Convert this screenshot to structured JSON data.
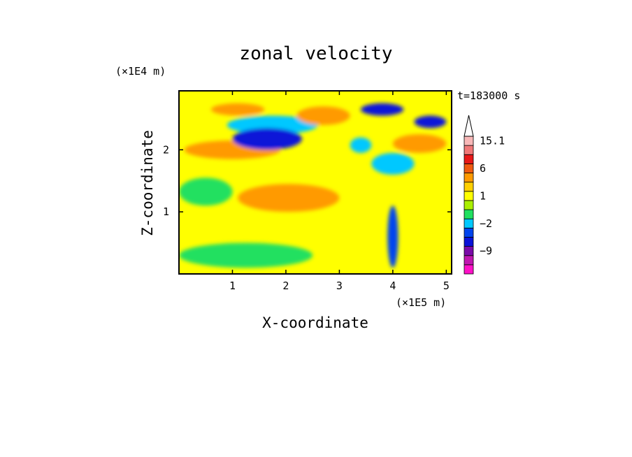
{
  "chart_data": {
    "type": "heatmap",
    "title": "zonal velocity",
    "xlabel": "X-coordinate",
    "ylabel": "Z-coordinate",
    "x_scale_label": "(×1E5 m)",
    "y_scale_label": "(×1E4 m)",
    "time_label": "t=183000 s",
    "xlim": [
      0,
      5.1
    ],
    "ylim": [
      0,
      2.95
    ],
    "x_ticks": [
      1,
      2,
      3,
      4,
      5
    ],
    "y_ticks": [
      1,
      2
    ],
    "colorbar": {
      "bands": [
        {
          "color": "#ff10c8"
        },
        {
          "color": "#c016b0"
        },
        {
          "color": "#7a0aa8"
        },
        {
          "color": "#0a12d8"
        },
        {
          "color": "#0044ee"
        },
        {
          "color": "#00c8ff"
        },
        {
          "color": "#20e060"
        },
        {
          "color": "#aaf000"
        },
        {
          "color": "#ffff00"
        },
        {
          "color": "#ffd000"
        },
        {
          "color": "#ff9a00"
        },
        {
          "color": "#f05a10"
        },
        {
          "color": "#e81818"
        },
        {
          "color": "#f07878"
        },
        {
          "color": "#f8b8b8"
        }
      ],
      "tick_labels": [
        {
          "text": "15.1",
          "band": 14
        },
        {
          "text": "6",
          "band": 11
        },
        {
          "text": "1",
          "band": 8
        },
        {
          "text": "−2",
          "band": 5
        },
        {
          "text": "−9",
          "band": 2
        }
      ]
    },
    "field": {
      "background": "#ffff00",
      "features": [
        {
          "x": [
            0.1,
            1.9
          ],
          "z": [
            1.85,
            2.15
          ],
          "color": "#ff9a00"
        },
        {
          "x": [
            1.1,
            3.0
          ],
          "z": [
            1.0,
            1.45
          ],
          "color": "#ff9a00"
        },
        {
          "x": [
            0.9,
            2.6
          ],
          "z": [
            2.25,
            2.55
          ],
          "color": "#00c8ff"
        },
        {
          "x": [
            1.0,
            2.3
          ],
          "z": [
            2.0,
            2.35
          ],
          "color": "#0a12d8"
        },
        {
          "x": [
            3.4,
            4.2
          ],
          "z": [
            2.55,
            2.75
          ],
          "color": "#0a12d8"
        },
        {
          "x": [
            4.4,
            5.0
          ],
          "z": [
            2.35,
            2.55
          ],
          "color": "#0a12d8"
        },
        {
          "x": [
            0.6,
            1.6
          ],
          "z": [
            2.55,
            2.75
          ],
          "color": "#ff9a00"
        },
        {
          "x": [
            2.2,
            3.2
          ],
          "z": [
            2.4,
            2.7
          ],
          "color": "#ff9a00"
        },
        {
          "x": [
            4.0,
            5.0
          ],
          "z": [
            1.95,
            2.25
          ],
          "color": "#ff9a00"
        },
        {
          "x": [
            0.0,
            1.0
          ],
          "z": [
            1.1,
            1.55
          ],
          "color": "#20e060"
        },
        {
          "x": [
            0.0,
            2.5
          ],
          "z": [
            0.1,
            0.5
          ],
          "color": "#20e060"
        },
        {
          "x": [
            3.9,
            4.1
          ],
          "z": [
            0.1,
            1.1
          ],
          "color": "#0044ee"
        },
        {
          "x": [
            3.2,
            3.6
          ],
          "z": [
            1.95,
            2.2
          ],
          "color": "#00c8ff"
        },
        {
          "x": [
            3.6,
            4.4
          ],
          "z": [
            1.6,
            1.95
          ],
          "color": "#00c8ff"
        }
      ]
    }
  }
}
